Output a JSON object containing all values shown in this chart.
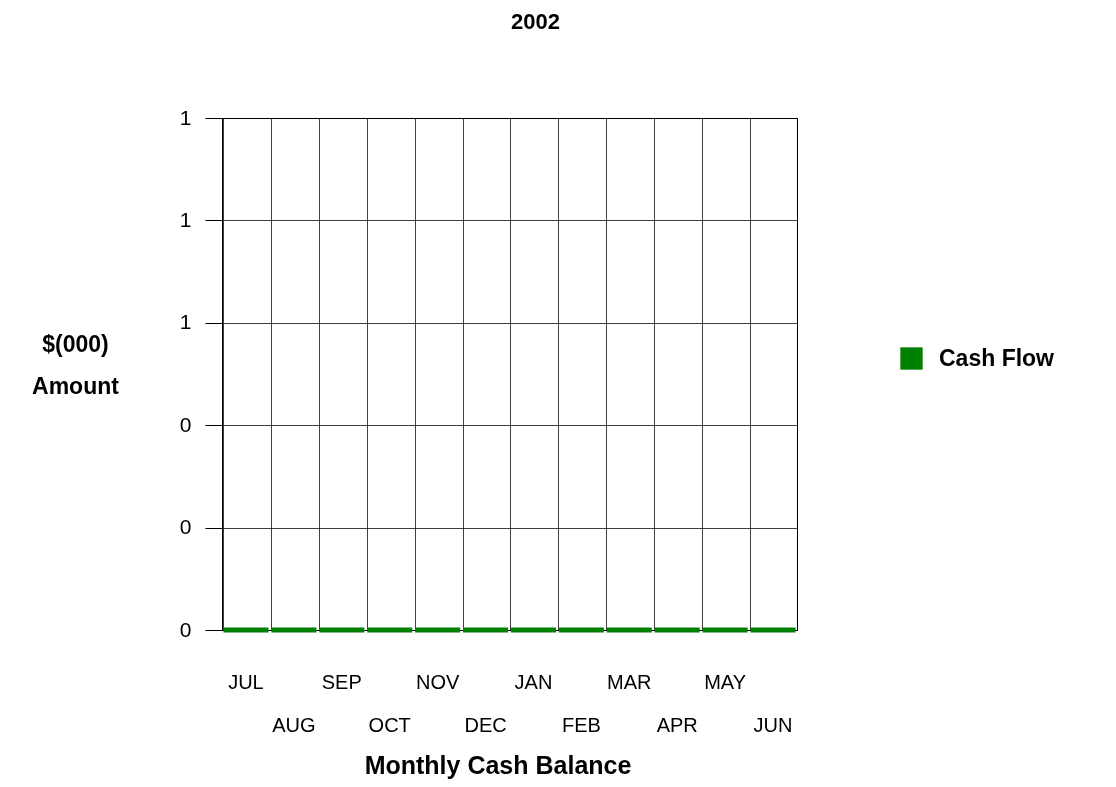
{
  "chart_data": {
    "type": "bar",
    "title": "2002",
    "xlabel": "Monthly Cash Balance",
    "ylabel": "$(000) Amount",
    "categories": [
      "JUL",
      "AUG",
      "SEP",
      "OCT",
      "NOV",
      "DEC",
      "JAN",
      "FEB",
      "MAR",
      "APR",
      "MAY",
      "JUN"
    ],
    "series": [
      {
        "name": "Cash Flow",
        "color": "#008000",
        "values": [
          0,
          0,
          0,
          0,
          0,
          0,
          0,
          0,
          0,
          0,
          0,
          0
        ]
      }
    ],
    "ylim": [
      0,
      1
    ],
    "yticks": [
      0,
      {
        "value": 0.2,
        "label": "0"
      },
      {
        "value": 0.4,
        "label": "0"
      },
      {
        "value": 0.6,
        "label": "1"
      },
      {
        "value": 0.8,
        "label": "1"
      },
      1
    ],
    "grid": true,
    "legend": "right"
  }
}
